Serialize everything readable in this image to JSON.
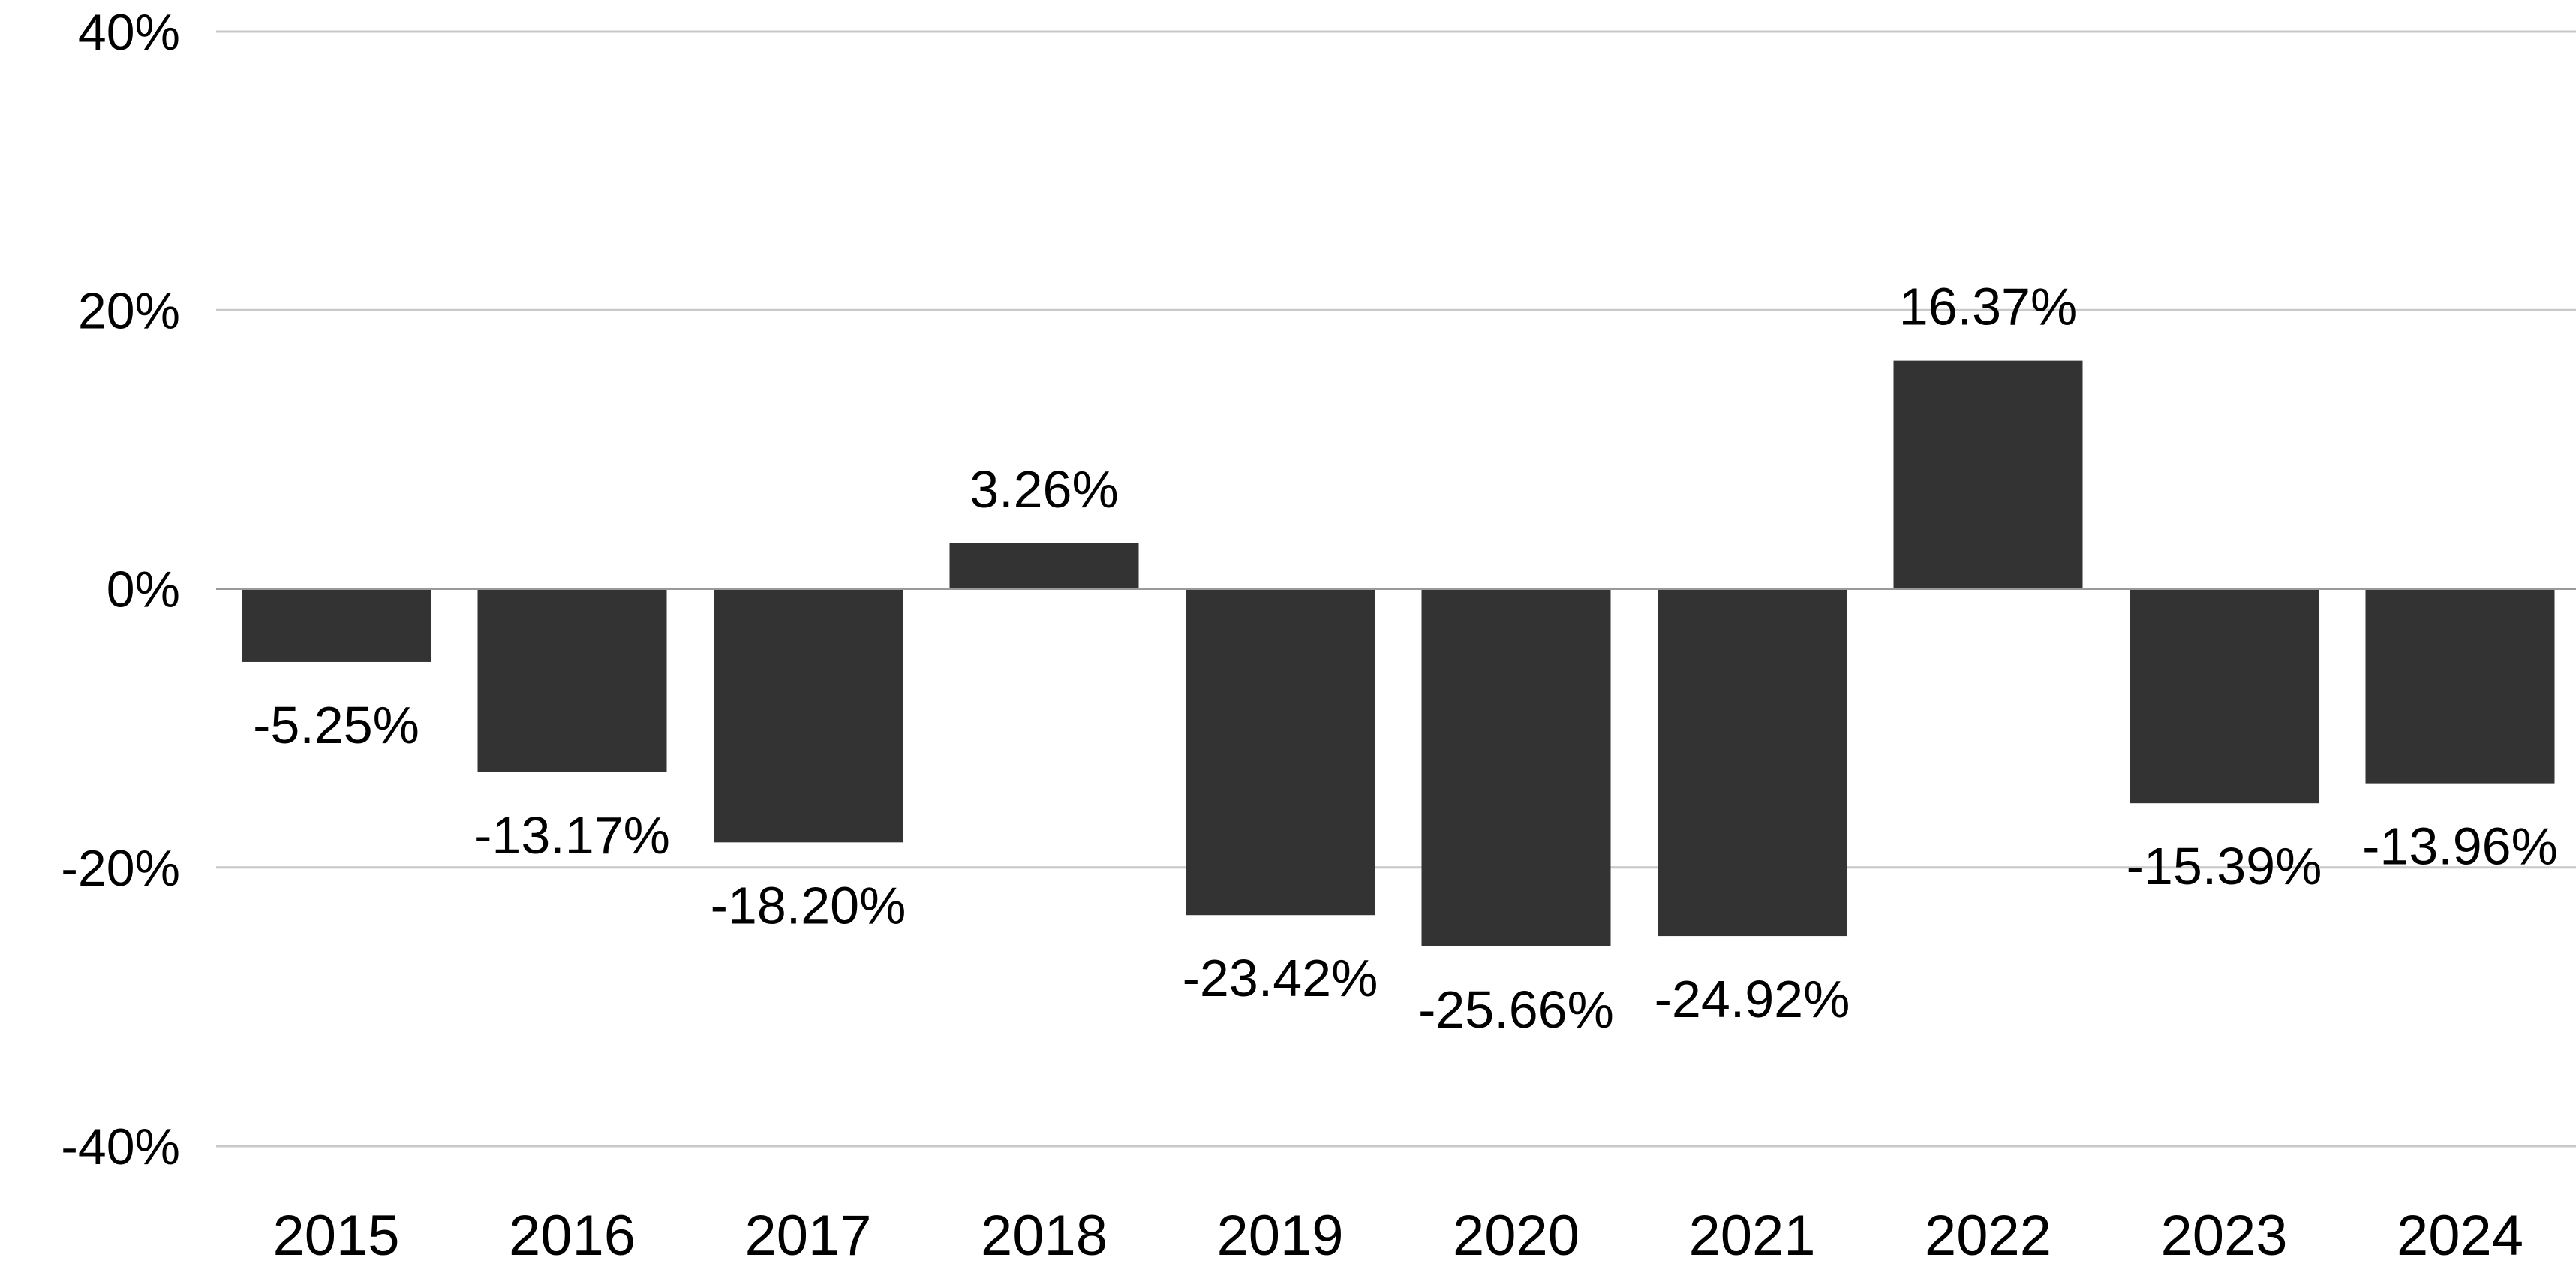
{
  "chart_data": {
    "type": "bar",
    "categories": [
      "2015",
      "2016",
      "2017",
      "2018",
      "2019",
      "2020",
      "2021",
      "2022",
      "2023",
      "2024"
    ],
    "values": [
      -5.25,
      -13.17,
      -18.2,
      3.26,
      -23.42,
      -25.66,
      -24.92,
      16.37,
      -15.39,
      -13.96
    ],
    "data_labels": [
      "-5.25%",
      "-13.17%",
      "-18.20%",
      "3.26%",
      "-23.42%",
      "-25.66%",
      "-24.92%",
      "16.37%",
      "-15.39%",
      "-13.96%"
    ],
    "ylim": [
      -40,
      40
    ],
    "yticks": [
      40,
      20,
      0,
      -20,
      -40
    ],
    "ytick_labels": [
      "40%",
      "20%",
      "0%",
      "-20%",
      "-40%"
    ],
    "title": "",
    "xlabel": "",
    "ylabel": "",
    "grid": true,
    "legend": "none",
    "colors": {
      "bar": "#333333",
      "grid": "#c8c8c8",
      "zero_line": "#999999",
      "text": "#000000"
    }
  }
}
